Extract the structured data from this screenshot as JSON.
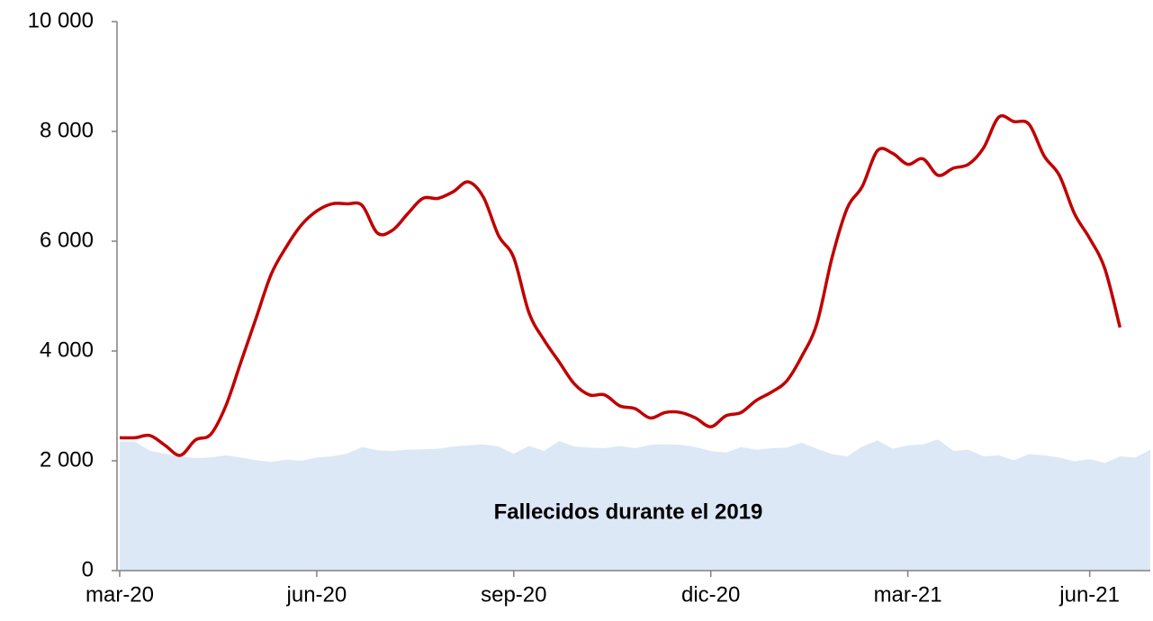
{
  "chart_data": {
    "type": "line",
    "categories": [
      "mar-20",
      null,
      null,
      null,
      null,
      null,
      null,
      null,
      null,
      null,
      null,
      null,
      null,
      "jun-20",
      null,
      null,
      null,
      null,
      null,
      null,
      null,
      null,
      null,
      null,
      null,
      null,
      "sep-20",
      null,
      null,
      null,
      null,
      null,
      null,
      null,
      null,
      null,
      null,
      null,
      null,
      "dic-20",
      null,
      null,
      null,
      null,
      null,
      null,
      null,
      null,
      null,
      null,
      null,
      null,
      "mar-21",
      null,
      null,
      null,
      null,
      null,
      null,
      null,
      null,
      null,
      null,
      null,
      "jun-21",
      null,
      null,
      null,
      null
    ],
    "series": [
      {
        "name": "Fallecidos durante el 2019",
        "type": "area",
        "color": "#dce8f5",
        "values": [
          2350,
          2350,
          2180,
          2130,
          2080,
          2050,
          2060,
          2100,
          2060,
          2010,
          1980,
          2020,
          2000,
          2060,
          2080,
          2130,
          2250,
          2190,
          2180,
          2200,
          2210,
          2220,
          2260,
          2280,
          2300,
          2260,
          2130,
          2270,
          2180,
          2360,
          2260,
          2240,
          2230,
          2270,
          2230,
          2290,
          2300,
          2290,
          2250,
          2180,
          2150,
          2250,
          2200,
          2230,
          2240,
          2330,
          2220,
          2120,
          2080,
          2260,
          2370,
          2220,
          2280,
          2300,
          2390,
          2180,
          2200,
          2080,
          2100,
          2010,
          2120,
          2100,
          2060,
          1990,
          2030,
          1960,
          2080,
          2060,
          2200
        ]
      },
      {
        "type": "line",
        "color": "#c00000",
        "values": [
          2420,
          2420,
          2460,
          2280,
          2100,
          2380,
          2480,
          3000,
          3800,
          4600,
          5400,
          5900,
          6300,
          6550,
          6680,
          6680,
          6650,
          6150,
          6200,
          6500,
          6780,
          6780,
          6900,
          7080,
          6800,
          6100,
          5700,
          4700,
          4200,
          3800,
          3400,
          3200,
          3200,
          3000,
          2950,
          2780,
          2880,
          2880,
          2780,
          2620,
          2820,
          2880,
          3100,
          3250,
          3450,
          3900,
          4500,
          5700,
          6600,
          7000,
          7650,
          7600,
          7400,
          7500,
          7200,
          7330,
          7400,
          7700,
          8260,
          8180,
          8130,
          7550,
          7200,
          6500,
          6050,
          5500,
          4430,
          null,
          null
        ]
      }
    ],
    "ylim": [
      0,
      10000
    ],
    "yticks": [
      0,
      {
        "value": 2000,
        "label": "2 000"
      },
      {
        "value": 4000,
        "label": "4 000"
      },
      {
        "value": 6000,
        "label": "6 000"
      },
      {
        "value": 8000,
        "label": "8 000"
      },
      {
        "value": 10000,
        "label": "10 000"
      }
    ],
    "grid": false
  }
}
